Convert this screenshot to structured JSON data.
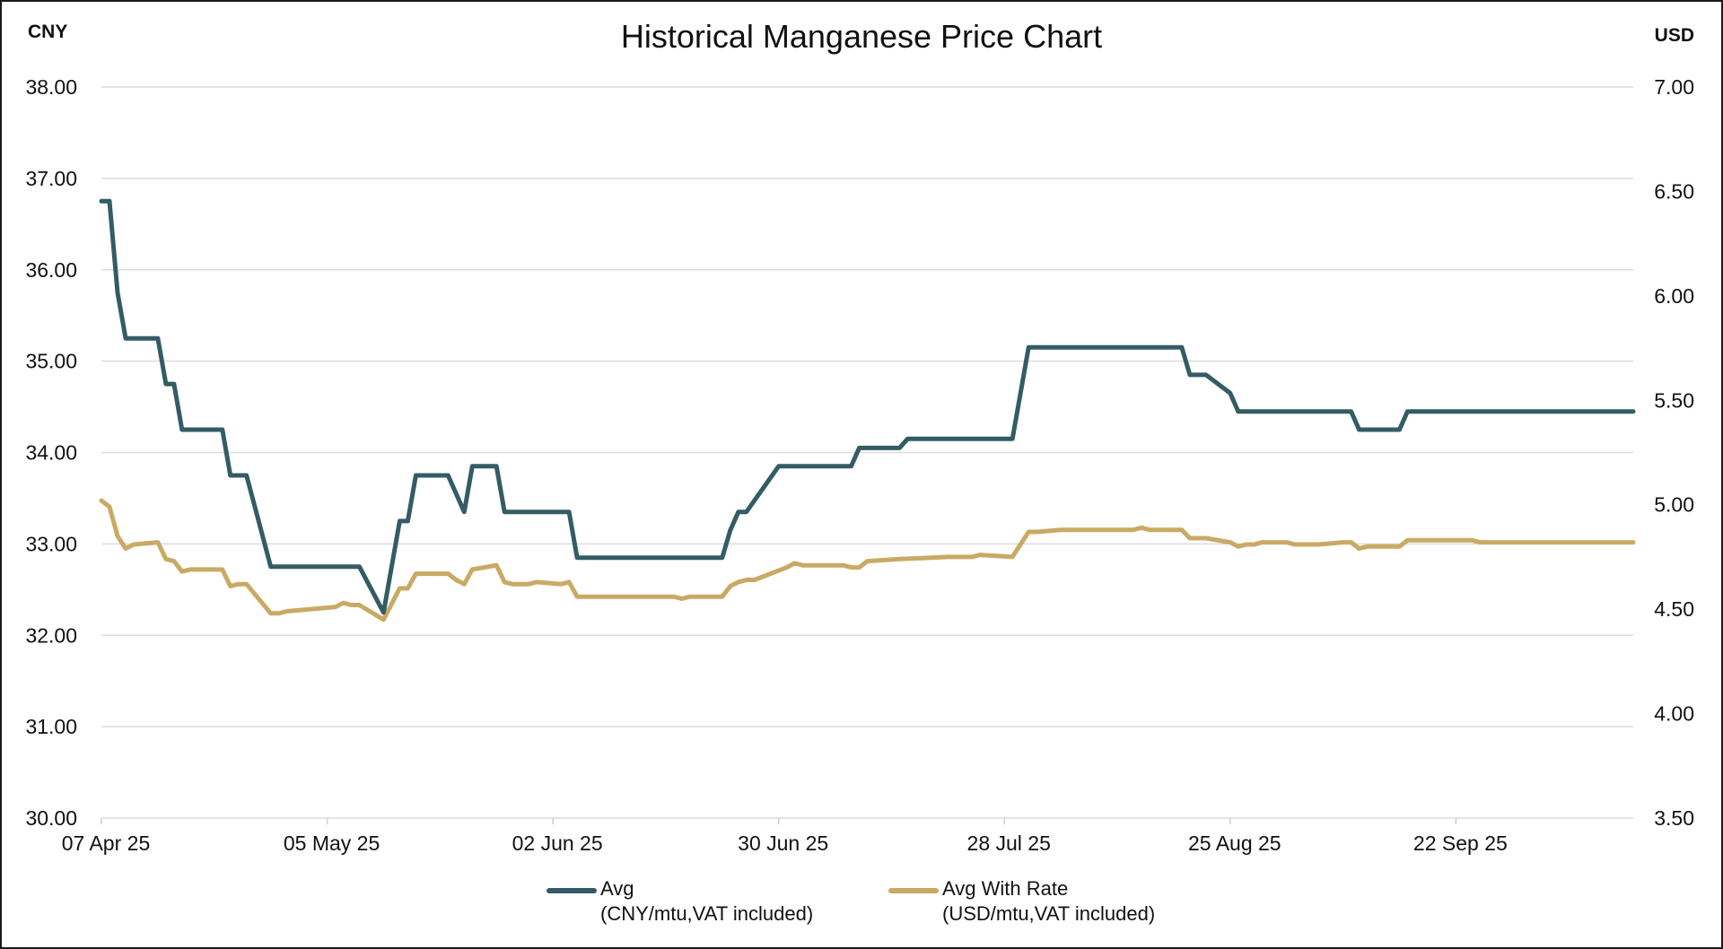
{
  "chart_data": {
    "type": "line",
    "title": "Historical Manganese Price Chart",
    "left_axis": {
      "unit_label": "CNY",
      "ylim": [
        30,
        38
      ],
      "ticks": [
        "30.00",
        "31.00",
        "32.00",
        "33.00",
        "34.00",
        "35.00",
        "36.00",
        "37.00",
        "38.00"
      ]
    },
    "right_axis": {
      "unit_label": "USD",
      "ylim": [
        3.5,
        7.0
      ],
      "ticks": [
        "3.50",
        "4.00",
        "4.50",
        "5.00",
        "5.50",
        "6.00",
        "6.50",
        "7.00"
      ]
    },
    "x_axis": {
      "start": "2025-04-07",
      "end": "2025-10-14",
      "ticks": [
        {
          "date": "2025-04-07",
          "label": "07 Apr 25"
        },
        {
          "date": "2025-05-05",
          "label": "05 May 25"
        },
        {
          "date": "2025-06-02",
          "label": "02 Jun 25"
        },
        {
          "date": "2025-06-30",
          "label": "30 Jun 25"
        },
        {
          "date": "2025-07-28",
          "label": "28 Jul 25"
        },
        {
          "date": "2025-08-25",
          "label": "25 Aug 25"
        },
        {
          "date": "2025-09-22",
          "label": "22 Sep 25"
        }
      ]
    },
    "grid": true,
    "legend_position": "bottom",
    "series": [
      {
        "name": "Avg",
        "unit_note": "(CNY/mtu,VAT included)",
        "axis": "left",
        "color": "#335c65",
        "points": [
          [
            "2025-04-07",
            36.75
          ],
          [
            "2025-04-08",
            36.75
          ],
          [
            "2025-04-09",
            35.75
          ],
          [
            "2025-04-10",
            35.25
          ],
          [
            "2025-04-14",
            35.25
          ],
          [
            "2025-04-15",
            34.75
          ],
          [
            "2025-04-16",
            34.75
          ],
          [
            "2025-04-17",
            34.25
          ],
          [
            "2025-04-22",
            34.25
          ],
          [
            "2025-04-23",
            33.75
          ],
          [
            "2025-04-25",
            33.75
          ],
          [
            "2025-04-28",
            32.75
          ],
          [
            "2025-05-09",
            32.75
          ],
          [
            "2025-05-12",
            32.25
          ],
          [
            "2025-05-14",
            33.25
          ],
          [
            "2025-05-15",
            33.25
          ],
          [
            "2025-05-16",
            33.75
          ],
          [
            "2025-05-20",
            33.75
          ],
          [
            "2025-05-22",
            33.35
          ],
          [
            "2025-05-23",
            33.85
          ],
          [
            "2025-05-26",
            33.85
          ],
          [
            "2025-05-27",
            33.35
          ],
          [
            "2025-06-04",
            33.35
          ],
          [
            "2025-06-05",
            32.85
          ],
          [
            "2025-06-23",
            32.85
          ],
          [
            "2025-06-24",
            33.15
          ],
          [
            "2025-06-25",
            33.35
          ],
          [
            "2025-06-26",
            33.35
          ],
          [
            "2025-06-30",
            33.85
          ],
          [
            "2025-07-09",
            33.85
          ],
          [
            "2025-07-10",
            34.05
          ],
          [
            "2025-07-15",
            34.05
          ],
          [
            "2025-07-16",
            34.15
          ],
          [
            "2025-07-29",
            34.15
          ],
          [
            "2025-07-31",
            35.15
          ],
          [
            "2025-08-19",
            35.15
          ],
          [
            "2025-08-20",
            34.85
          ],
          [
            "2025-08-22",
            34.85
          ],
          [
            "2025-08-25",
            34.65
          ],
          [
            "2025-08-26",
            34.45
          ],
          [
            "2025-09-09",
            34.45
          ],
          [
            "2025-09-10",
            34.25
          ],
          [
            "2025-09-15",
            34.25
          ],
          [
            "2025-09-16",
            34.45
          ],
          [
            "2025-10-14",
            34.45
          ]
        ]
      },
      {
        "name": "Avg With Rate",
        "unit_note": "(USD/mtu,VAT included)",
        "axis": "right",
        "color": "#c9aa64",
        "points": [
          [
            "2025-04-07",
            5.02
          ],
          [
            "2025-04-08",
            4.99
          ],
          [
            "2025-04-09",
            4.85
          ],
          [
            "2025-04-10",
            4.79
          ],
          [
            "2025-04-11",
            4.81
          ],
          [
            "2025-04-14",
            4.82
          ],
          [
            "2025-04-15",
            4.74
          ],
          [
            "2025-04-16",
            4.73
          ],
          [
            "2025-04-17",
            4.68
          ],
          [
            "2025-04-18",
            4.69
          ],
          [
            "2025-04-22",
            4.69
          ],
          [
            "2025-04-23",
            4.61
          ],
          [
            "2025-04-24",
            4.62
          ],
          [
            "2025-04-25",
            4.62
          ],
          [
            "2025-04-28",
            4.48
          ],
          [
            "2025-04-29",
            4.48
          ],
          [
            "2025-04-30",
            4.49
          ],
          [
            "2025-05-06",
            4.51
          ],
          [
            "2025-05-07",
            4.53
          ],
          [
            "2025-05-08",
            4.52
          ],
          [
            "2025-05-09",
            4.52
          ],
          [
            "2025-05-12",
            4.45
          ],
          [
            "2025-05-14",
            4.6
          ],
          [
            "2025-05-15",
            4.6
          ],
          [
            "2025-05-16",
            4.67
          ],
          [
            "2025-05-20",
            4.67
          ],
          [
            "2025-05-21",
            4.64
          ],
          [
            "2025-05-22",
            4.62
          ],
          [
            "2025-05-23",
            4.69
          ],
          [
            "2025-05-26",
            4.71
          ],
          [
            "2025-05-27",
            4.63
          ],
          [
            "2025-05-28",
            4.62
          ],
          [
            "2025-05-30",
            4.62
          ],
          [
            "2025-05-31",
            4.63
          ],
          [
            "2025-06-03",
            4.62
          ],
          [
            "2025-06-04",
            4.63
          ],
          [
            "2025-06-05",
            4.56
          ],
          [
            "2025-06-17",
            4.56
          ],
          [
            "2025-06-18",
            4.55
          ],
          [
            "2025-06-19",
            4.56
          ],
          [
            "2025-06-23",
            4.56
          ],
          [
            "2025-06-24",
            4.61
          ],
          [
            "2025-06-25",
            4.63
          ],
          [
            "2025-06-26",
            4.64
          ],
          [
            "2025-06-27",
            4.64
          ],
          [
            "2025-07-01",
            4.7
          ],
          [
            "2025-07-02",
            4.72
          ],
          [
            "2025-07-03",
            4.71
          ],
          [
            "2025-07-08",
            4.71
          ],
          [
            "2025-07-09",
            4.7
          ],
          [
            "2025-07-10",
            4.7
          ],
          [
            "2025-07-11",
            4.73
          ],
          [
            "2025-07-15",
            4.74
          ],
          [
            "2025-07-21",
            4.75
          ],
          [
            "2025-07-24",
            4.75
          ],
          [
            "2025-07-25",
            4.76
          ],
          [
            "2025-07-29",
            4.75
          ],
          [
            "2025-07-31",
            4.87
          ],
          [
            "2025-08-01",
            4.87
          ],
          [
            "2025-08-04",
            4.88
          ],
          [
            "2025-08-13",
            4.88
          ],
          [
            "2025-08-14",
            4.89
          ],
          [
            "2025-08-15",
            4.88
          ],
          [
            "2025-08-19",
            4.88
          ],
          [
            "2025-08-20",
            4.84
          ],
          [
            "2025-08-22",
            4.84
          ],
          [
            "2025-08-25",
            4.82
          ],
          [
            "2025-08-26",
            4.8
          ],
          [
            "2025-08-27",
            4.81
          ],
          [
            "2025-08-28",
            4.81
          ],
          [
            "2025-08-29",
            4.82
          ],
          [
            "2025-09-01",
            4.82
          ],
          [
            "2025-09-02",
            4.81
          ],
          [
            "2025-09-05",
            4.81
          ],
          [
            "2025-09-08",
            4.82
          ],
          [
            "2025-09-09",
            4.82
          ],
          [
            "2025-09-10",
            4.79
          ],
          [
            "2025-09-11",
            4.8
          ],
          [
            "2025-09-15",
            4.8
          ],
          [
            "2025-09-16",
            4.83
          ],
          [
            "2025-09-24",
            4.83
          ],
          [
            "2025-09-25",
            4.82
          ],
          [
            "2025-10-14",
            4.82
          ]
        ]
      }
    ]
  }
}
